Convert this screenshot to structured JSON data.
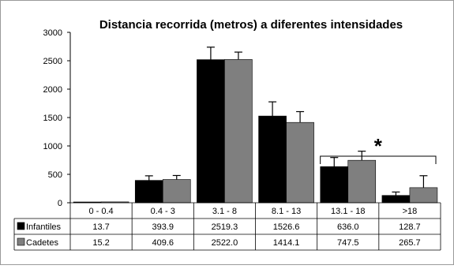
{
  "chart_data": {
    "type": "bar",
    "title": "Distancia recorrida (metros) a diferentes intensidades",
    "xlabel": "",
    "ylabel": "",
    "ylim": [
      0,
      3000
    ],
    "yticks": [
      0,
      500,
      1000,
      1500,
      2000,
      2500,
      3000
    ],
    "grid": false,
    "legend_placement": "table-left",
    "categories": [
      "0 - 0.4",
      "0.4 - 3",
      "3.1 - 8",
      "8.1 - 13",
      "13.1 - 18",
      ">18"
    ],
    "series": [
      {
        "name": "Infantiles",
        "color": "#000000",
        "values": [
          13.7,
          393.9,
          2519.3,
          1526.6,
          636.0,
          128.7
        ],
        "labels": [
          "13.7",
          "393.9",
          "2519.3",
          "1526.6",
          "636.0",
          "128.7"
        ],
        "error": [
          0,
          80,
          220,
          250,
          160,
          60
        ]
      },
      {
        "name": "Cadetes",
        "color": "#7f7f7f",
        "values": [
          15.2,
          409.6,
          2522.0,
          1414.1,
          747.5,
          265.7
        ],
        "labels": [
          "15.2",
          "409.6",
          "2522.0",
          "1414.1",
          "747.5",
          "265.7"
        ],
        "error": [
          0,
          70,
          130,
          190,
          160,
          210
        ]
      }
    ],
    "annotation": {
      "text": "*",
      "from_category": 4,
      "to_category": 5,
      "level": 820
    }
  }
}
